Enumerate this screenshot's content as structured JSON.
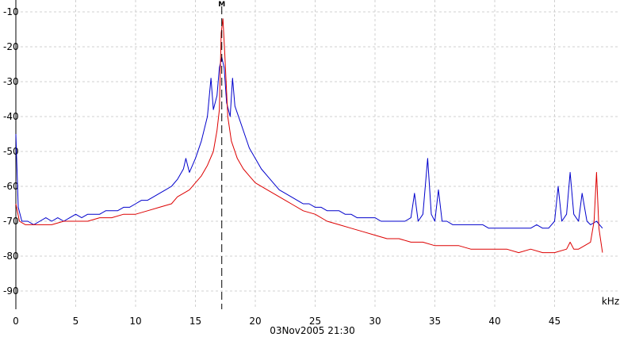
{
  "chart_data": {
    "type": "line",
    "title": "",
    "xlabel": "",
    "ylabel": "",
    "x_unit": "kHz",
    "timestamp": "03Nov2005  21:30",
    "xlim": [
      0,
      50
    ],
    "ylim": [
      -95,
      -5
    ],
    "x_ticks": [
      0,
      5,
      10,
      15,
      20,
      25,
      30,
      35,
      40,
      45
    ],
    "y_ticks": [
      -10,
      -20,
      -30,
      -40,
      -50,
      -60,
      -70,
      -80,
      -90
    ],
    "grid": true,
    "marker": {
      "x": 17.2,
      "label": "M"
    },
    "series": [
      {
        "color": "#0000cc",
        "points": [
          [
            0,
            -45
          ],
          [
            0.2,
            -66
          ],
          [
            0.5,
            -70
          ],
          [
            1,
            -70
          ],
          [
            1.5,
            -71
          ],
          [
            2,
            -70
          ],
          [
            2.5,
            -69
          ],
          [
            3,
            -70
          ],
          [
            3.5,
            -69
          ],
          [
            4,
            -70
          ],
          [
            4.5,
            -69
          ],
          [
            5,
            -68
          ],
          [
            5.5,
            -69
          ],
          [
            6,
            -68
          ],
          [
            6.5,
            -68
          ],
          [
            7,
            -68
          ],
          [
            7.5,
            -67
          ],
          [
            8,
            -67
          ],
          [
            8.5,
            -67
          ],
          [
            9,
            -66
          ],
          [
            9.5,
            -66
          ],
          [
            10,
            -65
          ],
          [
            10.5,
            -64
          ],
          [
            11,
            -64
          ],
          [
            11.5,
            -63
          ],
          [
            12,
            -62
          ],
          [
            12.5,
            -61
          ],
          [
            13,
            -60
          ],
          [
            13.5,
            -58
          ],
          [
            14,
            -55
          ],
          [
            14.2,
            -52
          ],
          [
            14.5,
            -56
          ],
          [
            15,
            -52
          ],
          [
            15.5,
            -47
          ],
          [
            16,
            -40
          ],
          [
            16.3,
            -29
          ],
          [
            16.5,
            -38
          ],
          [
            16.8,
            -34
          ],
          [
            17,
            -26
          ],
          [
            17.2,
            -23
          ],
          [
            17.4,
            -26
          ],
          [
            17.6,
            -36
          ],
          [
            17.9,
            -40
          ],
          [
            18.1,
            -29
          ],
          [
            18.3,
            -37
          ],
          [
            18.7,
            -41
          ],
          [
            19,
            -44
          ],
          [
            19.5,
            -49
          ],
          [
            20,
            -52
          ],
          [
            20.5,
            -55
          ],
          [
            21,
            -57
          ],
          [
            21.5,
            -59
          ],
          [
            22,
            -61
          ],
          [
            22.5,
            -62
          ],
          [
            23,
            -63
          ],
          [
            23.5,
            -64
          ],
          [
            24,
            -65
          ],
          [
            24.5,
            -65
          ],
          [
            25,
            -66
          ],
          [
            25.5,
            -66
          ],
          [
            26,
            -67
          ],
          [
            26.5,
            -67
          ],
          [
            27,
            -67
          ],
          [
            27.5,
            -68
          ],
          [
            28,
            -68
          ],
          [
            28.5,
            -69
          ],
          [
            29,
            -69
          ],
          [
            29.5,
            -69
          ],
          [
            30,
            -69
          ],
          [
            30.5,
            -70
          ],
          [
            31,
            -70
          ],
          [
            31.5,
            -70
          ],
          [
            32,
            -70
          ],
          [
            32.5,
            -70
          ],
          [
            33,
            -69
          ],
          [
            33.3,
            -62
          ],
          [
            33.6,
            -70
          ],
          [
            34,
            -68
          ],
          [
            34.4,
            -52
          ],
          [
            34.7,
            -68
          ],
          [
            35,
            -70
          ],
          [
            35.3,
            -61
          ],
          [
            35.6,
            -70
          ],
          [
            36,
            -70
          ],
          [
            36.5,
            -71
          ],
          [
            37,
            -71
          ],
          [
            37.5,
            -71
          ],
          [
            38,
            -71
          ],
          [
            38.5,
            -71
          ],
          [
            39,
            -71
          ],
          [
            39.5,
            -72
          ],
          [
            40,
            -72
          ],
          [
            40.5,
            -72
          ],
          [
            41,
            -72
          ],
          [
            41.5,
            -72
          ],
          [
            42,
            -72
          ],
          [
            42.5,
            -72
          ],
          [
            43,
            -72
          ],
          [
            43.5,
            -71
          ],
          [
            44,
            -72
          ],
          [
            44.5,
            -72
          ],
          [
            45,
            -70
          ],
          [
            45.3,
            -60
          ],
          [
            45.6,
            -70
          ],
          [
            46,
            -68
          ],
          [
            46.3,
            -56
          ],
          [
            46.6,
            -68
          ],
          [
            47,
            -70
          ],
          [
            47.3,
            -62
          ],
          [
            47.7,
            -70
          ],
          [
            48,
            -71
          ],
          [
            48.5,
            -70
          ],
          [
            49,
            -72
          ]
        ]
      },
      {
        "color": "#dd0000",
        "points": [
          [
            0,
            -65
          ],
          [
            0.3,
            -70
          ],
          [
            0.8,
            -71
          ],
          [
            1,
            -71
          ],
          [
            2,
            -71
          ],
          [
            3,
            -71
          ],
          [
            4,
            -70
          ],
          [
            5,
            -70
          ],
          [
            6,
            -70
          ],
          [
            7,
            -69
          ],
          [
            8,
            -69
          ],
          [
            9,
            -68
          ],
          [
            10,
            -68
          ],
          [
            11,
            -67
          ],
          [
            12,
            -66
          ],
          [
            13,
            -65
          ],
          [
            13.5,
            -63
          ],
          [
            14,
            -62
          ],
          [
            14.5,
            -61
          ],
          [
            15,
            -59
          ],
          [
            15.5,
            -57
          ],
          [
            16,
            -54
          ],
          [
            16.5,
            -50
          ],
          [
            16.8,
            -44
          ],
          [
            17,
            -38
          ],
          [
            17.15,
            -16
          ],
          [
            17.3,
            -12
          ],
          [
            17.45,
            -22
          ],
          [
            17.7,
            -40
          ],
          [
            18,
            -47
          ],
          [
            18.5,
            -52
          ],
          [
            19,
            -55
          ],
          [
            19.5,
            -57
          ],
          [
            20,
            -59
          ],
          [
            21,
            -61
          ],
          [
            22,
            -63
          ],
          [
            23,
            -65
          ],
          [
            24,
            -67
          ],
          [
            25,
            -68
          ],
          [
            26,
            -70
          ],
          [
            27,
            -71
          ],
          [
            28,
            -72
          ],
          [
            29,
            -73
          ],
          [
            30,
            -74
          ],
          [
            31,
            -75
          ],
          [
            32,
            -75
          ],
          [
            33,
            -76
          ],
          [
            34,
            -76
          ],
          [
            35,
            -77
          ],
          [
            36,
            -77
          ],
          [
            37,
            -77
          ],
          [
            38,
            -78
          ],
          [
            39,
            -78
          ],
          [
            40,
            -78
          ],
          [
            41,
            -78
          ],
          [
            42,
            -79
          ],
          [
            43,
            -78
          ],
          [
            44,
            -79
          ],
          [
            45,
            -79
          ],
          [
            46,
            -78
          ],
          [
            46.3,
            -76
          ],
          [
            46.6,
            -78
          ],
          [
            47,
            -78
          ],
          [
            47.5,
            -77
          ],
          [
            48,
            -76
          ],
          [
            48.3,
            -70
          ],
          [
            48.5,
            -56
          ],
          [
            48.7,
            -72
          ],
          [
            49,
            -79
          ]
        ]
      }
    ]
  }
}
